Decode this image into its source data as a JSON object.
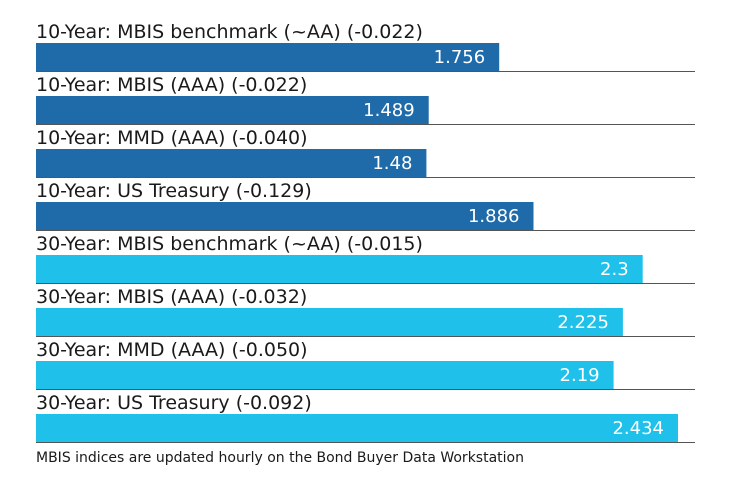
{
  "chart_data": {
    "type": "bar",
    "orientation": "horizontal",
    "title": "",
    "xlabel": "",
    "ylabel": "",
    "xlim": [
      0,
      2.5
    ],
    "grid": false,
    "categories": [
      "10-Year: MBIS benchmark (~AA) (-0.022)",
      "10-Year: MBIS (AAA) (-0.022)",
      "10-Year: MMD (AAA) (-0.040)",
      "10-Year: US Treasury (-0.129)",
      "30-Year: MBIS benchmark (~AA) (-0.015)",
      "30-Year: MBIS (AAA) (-0.032)",
      "30-Year: MMD (AAA) (-0.050)",
      "30-Year: US Treasury (-0.092)"
    ],
    "values": [
      1.756,
      1.489,
      1.48,
      1.886,
      2.3,
      2.225,
      2.19,
      2.434
    ],
    "value_labels": [
      "1.756",
      "1.489",
      "1.48",
      "1.886",
      "2.3",
      "2.225",
      "2.19",
      "2.434"
    ],
    "colors": [
      "#1f6aa8",
      "#1f6aa8",
      "#1f6aa8",
      "#1f6aa8",
      "#1fc0ea",
      "#1fc0ea",
      "#1fc0ea",
      "#1fc0ea"
    ],
    "separator_color": "#555555",
    "footnote": "MBIS indices are updated hourly on the Bond Buyer Data Workstation"
  }
}
